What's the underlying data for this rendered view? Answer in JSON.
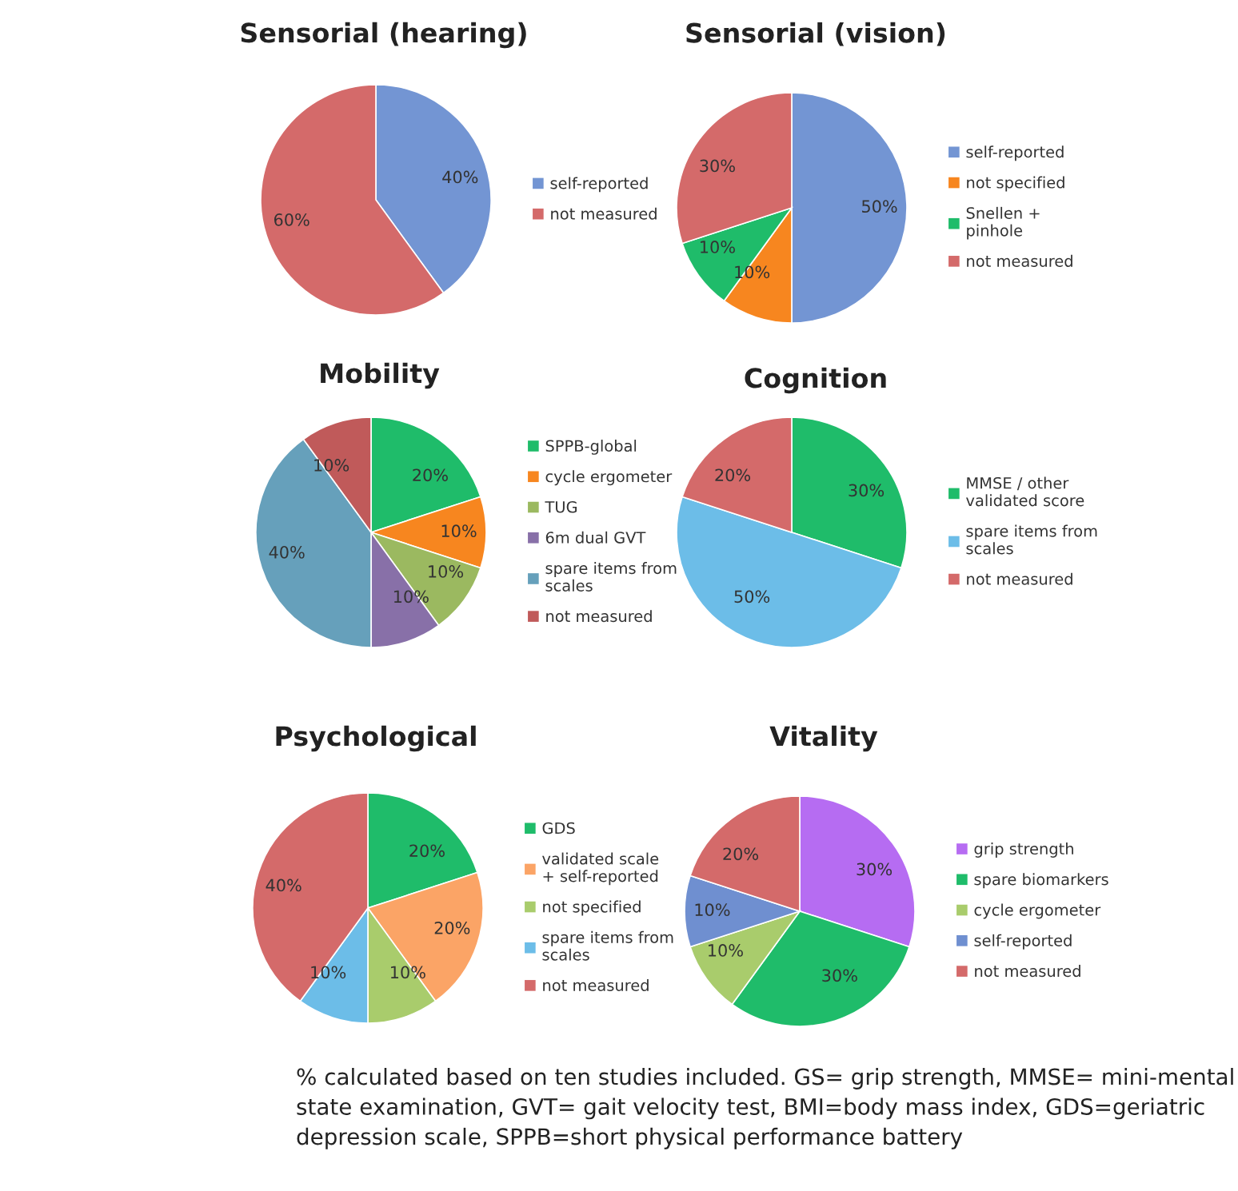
{
  "chart_data": [
    {
      "type": "pie",
      "title": "Sensorial (hearing)",
      "categories": [
        "self-reported",
        "not measured"
      ],
      "values": [
        40,
        60
      ],
      "value_labels": [
        "40%",
        "60%"
      ],
      "colors": [
        "#7395d3",
        "#d46a6a"
      ],
      "legend": "right"
    },
    {
      "type": "pie",
      "title": "Sensorial (vision)",
      "categories": [
        "self-reported",
        "not specified",
        "Snellen + pinhole",
        "not measured"
      ],
      "values": [
        50,
        10,
        10,
        30
      ],
      "value_labels": [
        "50%",
        "10%",
        "10%",
        "30%"
      ],
      "colors": [
        "#7395d3",
        "#f7861f",
        "#1fbc6a",
        "#d46a6a"
      ],
      "legend": "right"
    },
    {
      "type": "pie",
      "title": "Mobility",
      "categories": [
        "SPPB-global",
        "cycle ergometer",
        "TUG",
        "6m dual GVT",
        "spare items from scales",
        "not measured"
      ],
      "values": [
        20,
        10,
        10,
        10,
        40,
        10
      ],
      "value_labels": [
        "20%",
        "10%",
        "10%",
        "10%",
        "40%",
        "10%"
      ],
      "colors": [
        "#1fbc6a",
        "#f7861f",
        "#9bb960",
        "#8870a8",
        "#66a0bb",
        "#c05a5a"
      ],
      "legend": "right"
    },
    {
      "type": "pie",
      "title": "Cognition",
      "categories": [
        "MMSE / other validated score",
        "spare items from scales",
        "not measured"
      ],
      "values": [
        30,
        50,
        20
      ],
      "value_labels": [
        "30%",
        "50%",
        "20%"
      ],
      "colors": [
        "#1fbc6a",
        "#6cbde8",
        "#d46a6a"
      ],
      "legend": "right"
    },
    {
      "type": "pie",
      "title": "Psychological",
      "categories": [
        "GDS",
        "validated scale + self-reported",
        "not specified",
        "spare items from scales",
        "not measured"
      ],
      "values": [
        20,
        20,
        10,
        10,
        40
      ],
      "value_labels": [
        "20%",
        "20%",
        "10%",
        "10%",
        "40%"
      ],
      "colors": [
        "#1fbc6a",
        "#fba466",
        "#a9cc6c",
        "#6cbde8",
        "#d46a6a"
      ],
      "legend": "right"
    },
    {
      "type": "pie",
      "title": "Vitality",
      "categories": [
        "grip strength",
        "spare biomarkers",
        "cycle ergometer",
        "self-reported",
        "not measured"
      ],
      "values": [
        30,
        30,
        10,
        10,
        20
      ],
      "value_labels": [
        "30%",
        "30%",
        "10%",
        "10%",
        "20%"
      ],
      "colors": [
        "#b66cf2",
        "#1fbc6a",
        "#a9cc6c",
        "#6f8fd0",
        "#d46a6a"
      ],
      "legend": "right",
      "annotations": [
        "% calculated based on ten studies included. GS= grip strength, MMSE= mini-mental state examination, GVT= gait velocity test, BMI=body mass index, GDS=geriatric depression scale, SPPB=short physical performance battery"
      ]
    }
  ]
}
